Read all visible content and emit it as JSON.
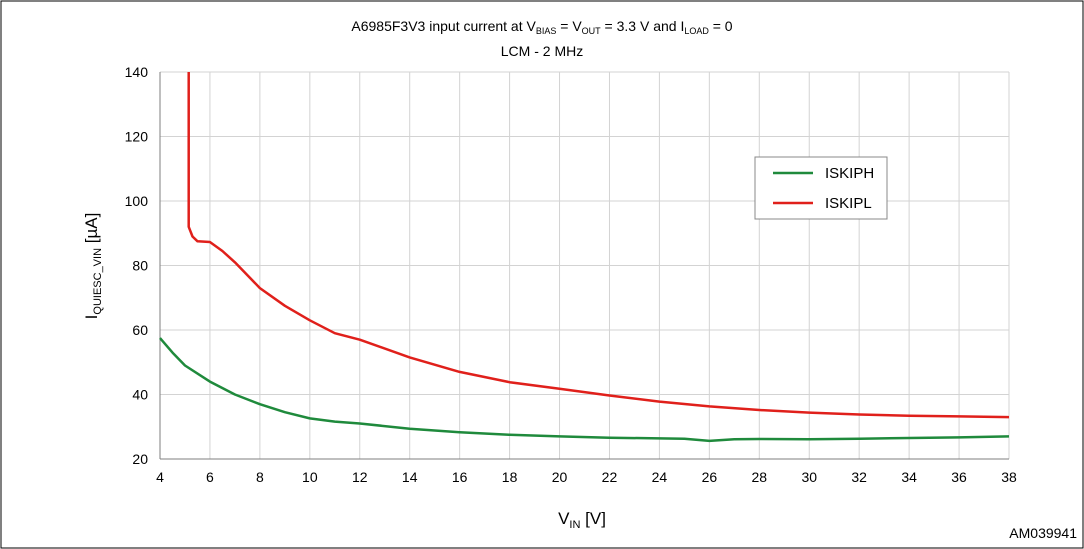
{
  "chart_data": {
    "type": "line",
    "title_parts": {
      "prefix": "A6985F3V3  input current at V",
      "bias_sub": "BIAS",
      "eq1": " = V",
      "out_sub": "OUT",
      "eq2": " = 3.3 V and  I",
      "load_sub": "LOAD",
      "eq3": " = 0"
    },
    "subtitle": "LCM - 2 MHz",
    "xlabel_main": "V",
    "xlabel_sub": "IN",
    "xlabel_unit": " [V]",
    "ylabel_main": "I",
    "ylabel_sub": "QUIESC_VIN",
    "ylabel_unit": " [µA]",
    "xlim": [
      4,
      38
    ],
    "ylim": [
      20,
      140
    ],
    "xticks": [
      4,
      6,
      8,
      10,
      12,
      14,
      16,
      18,
      20,
      22,
      24,
      26,
      28,
      30,
      32,
      34,
      36,
      38
    ],
    "yticks": [
      20,
      40,
      60,
      80,
      100,
      120,
      140
    ],
    "grid": true,
    "legend_position": "right",
    "series": [
      {
        "name": "ISKIPH",
        "color": "#1f8a3c",
        "points": [
          [
            4,
            57.5
          ],
          [
            4.5,
            53
          ],
          [
            5,
            49
          ],
          [
            6,
            44
          ],
          [
            7,
            40
          ],
          [
            8,
            37
          ],
          [
            9,
            34.5
          ],
          [
            10,
            32.6
          ],
          [
            11,
            31.6
          ],
          [
            12,
            31
          ],
          [
            14,
            29.4
          ],
          [
            16,
            28.3
          ],
          [
            18,
            27.5
          ],
          [
            20,
            27
          ],
          [
            22,
            26.6
          ],
          [
            24,
            26.4
          ],
          [
            25,
            26.3
          ],
          [
            26,
            25.6
          ],
          [
            27,
            26.1
          ],
          [
            28,
            26.2
          ],
          [
            30,
            26.1
          ],
          [
            32,
            26.3
          ],
          [
            34,
            26.5
          ],
          [
            36,
            26.7
          ],
          [
            38,
            27
          ]
        ]
      },
      {
        "name": "ISKIPL",
        "color": "#e0201b",
        "points": [
          [
            5.15,
            140
          ],
          [
            5.15,
            92
          ],
          [
            5.3,
            89
          ],
          [
            5.5,
            87.5
          ],
          [
            6,
            87.3
          ],
          [
            6.5,
            84.5
          ],
          [
            7,
            81
          ],
          [
            8,
            73
          ],
          [
            9,
            67.5
          ],
          [
            10,
            63
          ],
          [
            11,
            59
          ],
          [
            12,
            57
          ],
          [
            14,
            51.5
          ],
          [
            16,
            47
          ],
          [
            18,
            43.8
          ],
          [
            20,
            41.8
          ],
          [
            22,
            39.7
          ],
          [
            24,
            37.8
          ],
          [
            26,
            36.3
          ],
          [
            28,
            35.2
          ],
          [
            30,
            34.4
          ],
          [
            32,
            33.8
          ],
          [
            34,
            33.4
          ],
          [
            36,
            33.2
          ],
          [
            38,
            33
          ]
        ]
      }
    ]
  },
  "figure_code": "AM039941",
  "colors": {
    "grid": "#d3d3d3",
    "axis": "#7f7f7f",
    "border": "#000000"
  }
}
